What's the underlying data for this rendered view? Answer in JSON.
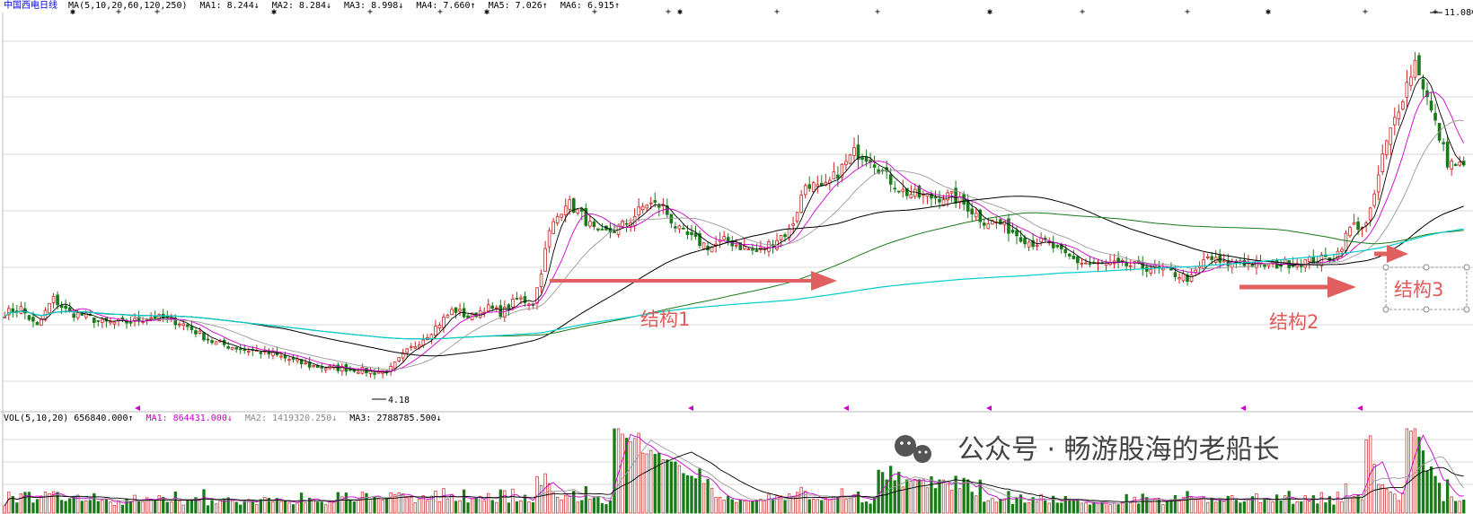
{
  "chart_data": {
    "type": "candlestick",
    "header": {
      "main_label": "中国西电日线",
      "ma_params": "MA(5,10,20,60,120,250)",
      "ma_values": [
        {
          "text": "MA1: 8.244↓",
          "color": "#000000"
        },
        {
          "text": "MA2: 8.284↓",
          "color": "#cc00cc"
        },
        {
          "text": "MA3: 8.998↓",
          "color": "#888888"
        },
        {
          "text": "MA4: 7.660↑",
          "color": "#000000"
        },
        {
          "text": "MA5: 7.026↑",
          "color": "#1a7a1a"
        },
        {
          "text": "MA6: 6.915↑",
          "color": "#00cccc"
        }
      ]
    },
    "price_range": [
      3.6,
      11.6
    ],
    "low_label": "4.18",
    "high_label": "11.08",
    "annotations": [
      "结构1",
      "结构2",
      "结构3"
    ],
    "volume_header": {
      "params": "VOL(5,10,20) 656840.000↑",
      "values": [
        {
          "text": "MA1: 864431.000↓",
          "color": "#cc00cc"
        },
        {
          "text": "MA2: 1419320.250↓",
          "color": "#888888"
        },
        {
          "text": "MA3: 2788785.500↓",
          "color": "#000000"
        }
      ]
    },
    "watermark": "公众号 · 畅游股海的老船长",
    "colors": {
      "up": "#cc2222",
      "down": "#1a7a1a",
      "ma5": "#000000",
      "ma10": "#cc00cc",
      "ma20": "#999999",
      "ma60": "#000000",
      "ma120": "#1a7a1a",
      "ma250": "#00cccc",
      "arrow": "#e06060",
      "grid": "#d8d8d8"
    },
    "close_series": [
      5.5,
      5.6,
      5.2,
      5.8,
      5.5,
      5.45,
      5.3,
      5.3,
      5.32,
      5.42,
      5.38,
      5.3,
      5.1,
      4.9,
      4.82,
      4.75,
      4.7,
      4.62,
      4.52,
      4.42,
      4.38,
      4.36,
      4.34,
      4.28,
      4.32,
      4.68,
      4.95,
      5.25,
      5.58,
      5.4,
      5.62,
      5.5,
      5.8,
      5.7,
      7.2,
      7.8,
      7.5,
      7.1,
      7.2,
      7.4,
      7.75,
      7.7,
      7.2,
      7.0,
      6.85,
      7.0,
      6.85,
      6.75,
      7.0,
      7.2,
      8.2,
      8.0,
      8.4,
      8.8,
      8.7,
      8.3,
      8.0,
      7.9,
      7.88,
      7.9,
      7.7,
      7.4,
      7.35,
      7.15,
      6.95,
      6.95,
      6.7,
      6.55,
      6.5,
      6.5,
      6.48,
      6.45,
      6.4,
      6.3,
      6.2,
      6.65,
      6.5,
      6.55,
      6.5,
      6.48,
      6.52,
      6.55,
      6.6,
      6.65,
      7.3,
      7.3,
      8.8,
      9.8,
      10.7,
      9.6,
      8.6,
      8.5
    ]
  }
}
